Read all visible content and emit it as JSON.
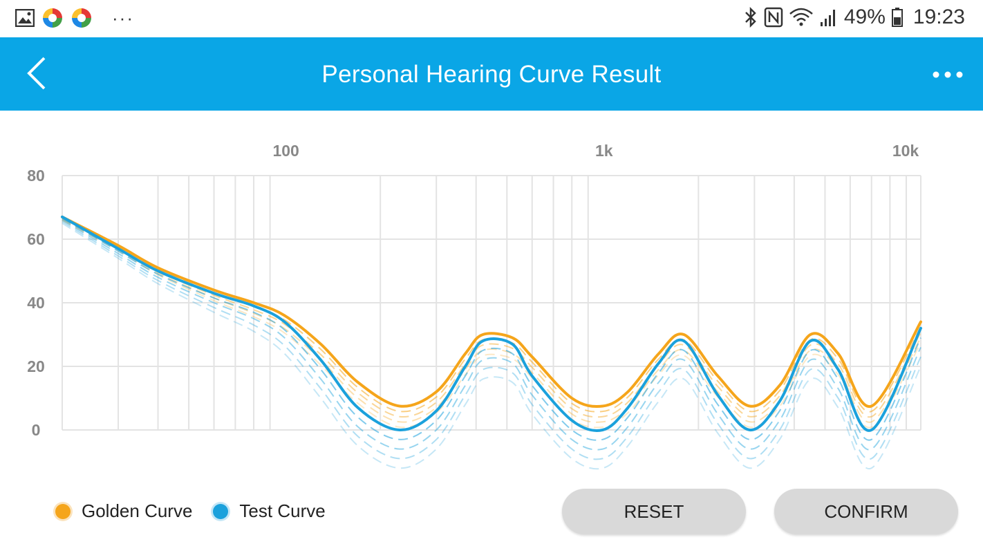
{
  "status_bar": {
    "battery_percent": "49%",
    "time": "19:23",
    "more_label": "···",
    "icons": [
      "gallery-icon",
      "app-icon",
      "app-icon",
      "bluetooth-icon",
      "nfc-icon",
      "wifi-icon",
      "signal-icon",
      "battery-icon"
    ]
  },
  "app_bar": {
    "title": "Personal Hearing Curve Result",
    "back_icon": "chevron-left-icon",
    "menu_icon": "more-dots-icon",
    "color": "#0aa6e6"
  },
  "chart_data": {
    "type": "line",
    "x_scale": "log",
    "xlim": [
      20,
      10000
    ],
    "ylim": [
      0,
      80
    ],
    "x_ticks": [
      100,
      1000,
      10000
    ],
    "x_tick_labels": [
      "100",
      "1k",
      "10k"
    ],
    "y_ticks": [
      0,
      20,
      40,
      60,
      80
    ],
    "y_tick_labels": [
      "0",
      "20",
      "40",
      "60",
      "80"
    ],
    "grid": true,
    "x_axis_position": "top",
    "legend_position": "bottom-left",
    "series": [
      {
        "name": "Golden Curve",
        "color": "#f5a51b",
        "x": [
          20,
          30,
          40,
          60,
          80,
          100,
          130,
          170,
          230,
          300,
          370,
          420,
          520,
          600,
          800,
          1000,
          1200,
          1500,
          1800,
          2300,
          2900,
          3600,
          4500,
          5500,
          7000,
          10000
        ],
        "y": [
          67,
          58,
          51,
          44,
          40,
          36,
          27,
          15,
          7.5,
          12,
          24,
          30,
          29,
          23,
          10,
          7.5,
          12,
          24,
          30,
          17,
          7.5,
          14,
          30,
          24,
          7.5,
          34
        ]
      },
      {
        "name": "Test Curve",
        "color": "#1ba1dc",
        "x": [
          20,
          30,
          40,
          60,
          80,
          100,
          130,
          170,
          230,
          300,
          370,
          420,
          520,
          600,
          800,
          1000,
          1200,
          1500,
          1800,
          2300,
          2900,
          3600,
          4500,
          5500,
          7000,
          10000
        ],
        "y": [
          67,
          57,
          50,
          43,
          39,
          34,
          22,
          7,
          0,
          6,
          20,
          28,
          27,
          17,
          3,
          0,
          7,
          21,
          28,
          11,
          0,
          9,
          28,
          19,
          0,
          32
        ]
      }
    ]
  },
  "legend": {
    "golden_label": "Golden Curve",
    "test_label": "Test Curve"
  },
  "buttons": {
    "reset_label": "RESET",
    "confirm_label": "CONFIRM"
  }
}
